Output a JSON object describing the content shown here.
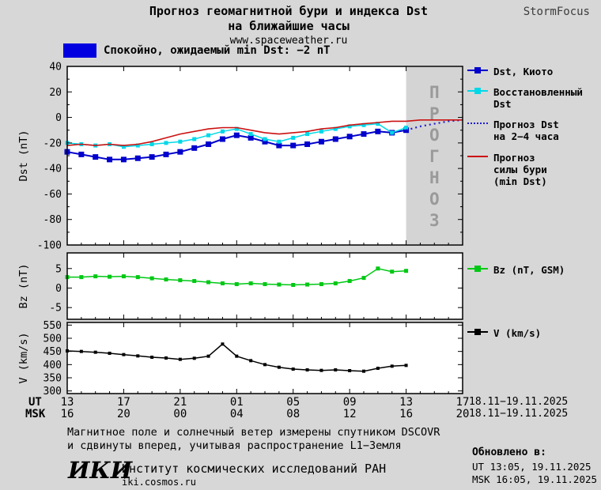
{
  "header": {
    "title_line1": "Прогноз геомагнитной бури и индекса Dst",
    "title_line2": "на ближайшие часы",
    "website": "www.spaceweather.ru",
    "brand": "StormFocus"
  },
  "banner": {
    "text": "Спокойно, ожидаемый min Dst: −2 nT",
    "swatch_color": "#0000e0"
  },
  "x_axis": {
    "range": [
      0,
      28
    ],
    "tick_positions": [
      0,
      4,
      8,
      12,
      16,
      20,
      24,
      28
    ],
    "ut_label": "UT",
    "msk_label": "MSK",
    "ut_ticks": [
      "13",
      "17",
      "21",
      "01",
      "05",
      "09",
      "13",
      "17"
    ],
    "msk_ticks": [
      "16",
      "20",
      "00",
      "04",
      "08",
      "12",
      "16",
      "20"
    ],
    "ut_date_range": "18.11−19.11.2025",
    "msk_date_range": "18.11−19.11.2025"
  },
  "forecast_region": {
    "start": 24,
    "end": 28,
    "label": "ПРОГНОЗ",
    "fill": "#d4d4d4",
    "label_color": "#9a9a9a"
  },
  "chart_data": [
    {
      "type": "line",
      "ylabel": "Dst (nT)",
      "ylim": [
        -100,
        40
      ],
      "yticks": [
        40,
        20,
        0,
        -20,
        -40,
        -60,
        -80,
        -100
      ],
      "yminor_step": 10,
      "series": [
        {
          "name": "Dst, Киото",
          "color": "#0000cc",
          "marker": true,
          "marker_size": 7,
          "width": 2,
          "x": [
            0,
            1,
            2,
            3,
            4,
            5,
            6,
            7,
            8,
            9,
            10,
            11,
            12,
            13,
            14,
            15,
            16,
            17,
            18,
            19,
            20,
            21,
            22,
            23,
            24
          ],
          "values": [
            -27,
            -29,
            -31,
            -33,
            -33,
            -32,
            -31,
            -29,
            -27,
            -24,
            -21,
            -17,
            -14,
            -16,
            -19,
            -22,
            -22,
            -21,
            -19,
            -17,
            -15,
            -13,
            -11,
            -12,
            -10
          ]
        },
        {
          "name": "Восстановленный Dst",
          "color": "#00d8e8",
          "marker": true,
          "marker_size": 5,
          "width": 1.5,
          "x": [
            0,
            1,
            2,
            3,
            4,
            5,
            6,
            7,
            8,
            9,
            10,
            11,
            12,
            13,
            14,
            15,
            16,
            17,
            18,
            19,
            20,
            21,
            22,
            23,
            24
          ],
          "values": [
            -20,
            -21,
            -22,
            -21,
            -23,
            -22,
            -21,
            -20,
            -19,
            -17,
            -14,
            -11,
            -9,
            -13,
            -17,
            -19,
            -16,
            -13,
            -11,
            -9,
            -7,
            -6,
            -5,
            -12,
            -8
          ]
        },
        {
          "name": "Прогноз Dst на 2−4 часа",
          "color": "#2020d0",
          "style": "dotted",
          "width": 2.2,
          "x": [
            24,
            25,
            26,
            27,
            28
          ],
          "values": [
            -10,
            -7,
            -5,
            -3,
            -2
          ]
        },
        {
          "name": "Прогноз силы бури (min Dst)",
          "color": "#cc1010",
          "width": 1.6,
          "x": [
            0,
            1,
            2,
            3,
            4,
            5,
            6,
            7,
            8,
            9,
            10,
            11,
            12,
            13,
            14,
            15,
            16,
            17,
            18,
            19,
            20,
            21,
            22,
            23,
            24,
            25,
            26,
            27,
            28
          ],
          "values": [
            -22,
            -21,
            -22,
            -21,
            -22,
            -21,
            -19,
            -16,
            -13,
            -11,
            -9,
            -8,
            -8,
            -10,
            -12,
            -13,
            -12,
            -11,
            -9,
            -8,
            -6,
            -5,
            -4,
            -3,
            -3,
            -2,
            -2,
            -2,
            -2
          ]
        }
      ]
    },
    {
      "type": "line",
      "ylabel": "Bz (nT)",
      "ylim": [
        -8,
        9
      ],
      "yticks": [
        5,
        0,
        -5
      ],
      "series": [
        {
          "name": "Bz (nT, GSM)",
          "color": "#00c814",
          "marker": true,
          "marker_size": 5,
          "width": 1.5,
          "x": [
            0,
            1,
            2,
            3,
            4,
            5,
            6,
            7,
            8,
            9,
            10,
            11,
            12,
            13,
            14,
            15,
            16,
            17,
            18,
            19,
            20,
            21,
            22,
            23,
            24
          ],
          "values": [
            2.8,
            2.8,
            3.0,
            2.9,
            3.0,
            2.8,
            2.5,
            2.2,
            2.0,
            1.8,
            1.5,
            1.2,
            1.0,
            1.2,
            1.0,
            0.9,
            0.8,
            0.9,
            1.0,
            1.2,
            1.8,
            2.6,
            5.0,
            4.2,
            4.4
          ]
        }
      ]
    },
    {
      "type": "line",
      "ylabel": "V (km/s)",
      "ylim": [
        290,
        560
      ],
      "yticks": [
        550,
        500,
        450,
        400,
        350,
        300
      ],
      "series": [
        {
          "name": "V (km/s)",
          "color": "#000000",
          "marker": true,
          "marker_size": 4,
          "width": 1.5,
          "x": [
            0,
            1,
            2,
            3,
            4,
            5,
            6,
            7,
            8,
            9,
            10,
            11,
            12,
            13,
            14,
            15,
            16,
            17,
            18,
            19,
            20,
            21,
            22,
            23,
            24
          ],
          "values": [
            452,
            450,
            447,
            443,
            438,
            433,
            428,
            425,
            420,
            424,
            432,
            478,
            432,
            415,
            400,
            390,
            383,
            380,
            378,
            380,
            377,
            375,
            386,
            394,
            397
          ]
        }
      ]
    }
  ],
  "legend": {
    "dst": [
      {
        "color": "#0000cc",
        "style": "solid",
        "marker": true,
        "lines": [
          "Dst, Киото"
        ]
      },
      {
        "color": "#00d8e8",
        "style": "solid",
        "marker": true,
        "space_before": 4,
        "lines": [
          "Восстановленный",
          "Dst"
        ]
      },
      {
        "color": "#2020d0",
        "style": "dotted",
        "marker": false,
        "space_before": 8,
        "lines": [
          "Прогноз Dst",
          "на 2−4 часа"
        ]
      },
      {
        "color": "#cc1010",
        "style": "solid",
        "marker": false,
        "space_before": 12,
        "lines": [
          "Прогноз",
          "силы бури",
          "(min Dst)"
        ]
      }
    ],
    "bz": [
      {
        "color": "#00c814",
        "style": "solid",
        "marker": true,
        "lines": [
          "Bz (nT, GSM)"
        ]
      }
    ],
    "v": [
      {
        "color": "#000000",
        "style": "solid",
        "marker": true,
        "lines": [
          "V (km/s)"
        ]
      }
    ]
  },
  "footer": {
    "note_line1": "Магнитное поле и солнечный ветер измерены спутником DSCOVR",
    "note_line2": "и сдвинуты вперед, учитывая распространение L1−Земля",
    "updated_label": "Обновлено в:",
    "updated_ut": "UT  13:05, 19.11.2025",
    "updated_msk": "MSK 16:05, 19.11.2025",
    "logo": "ИКИ",
    "institute": "Институт космических исследований РАН",
    "website": "iki.cosmos.ru"
  }
}
